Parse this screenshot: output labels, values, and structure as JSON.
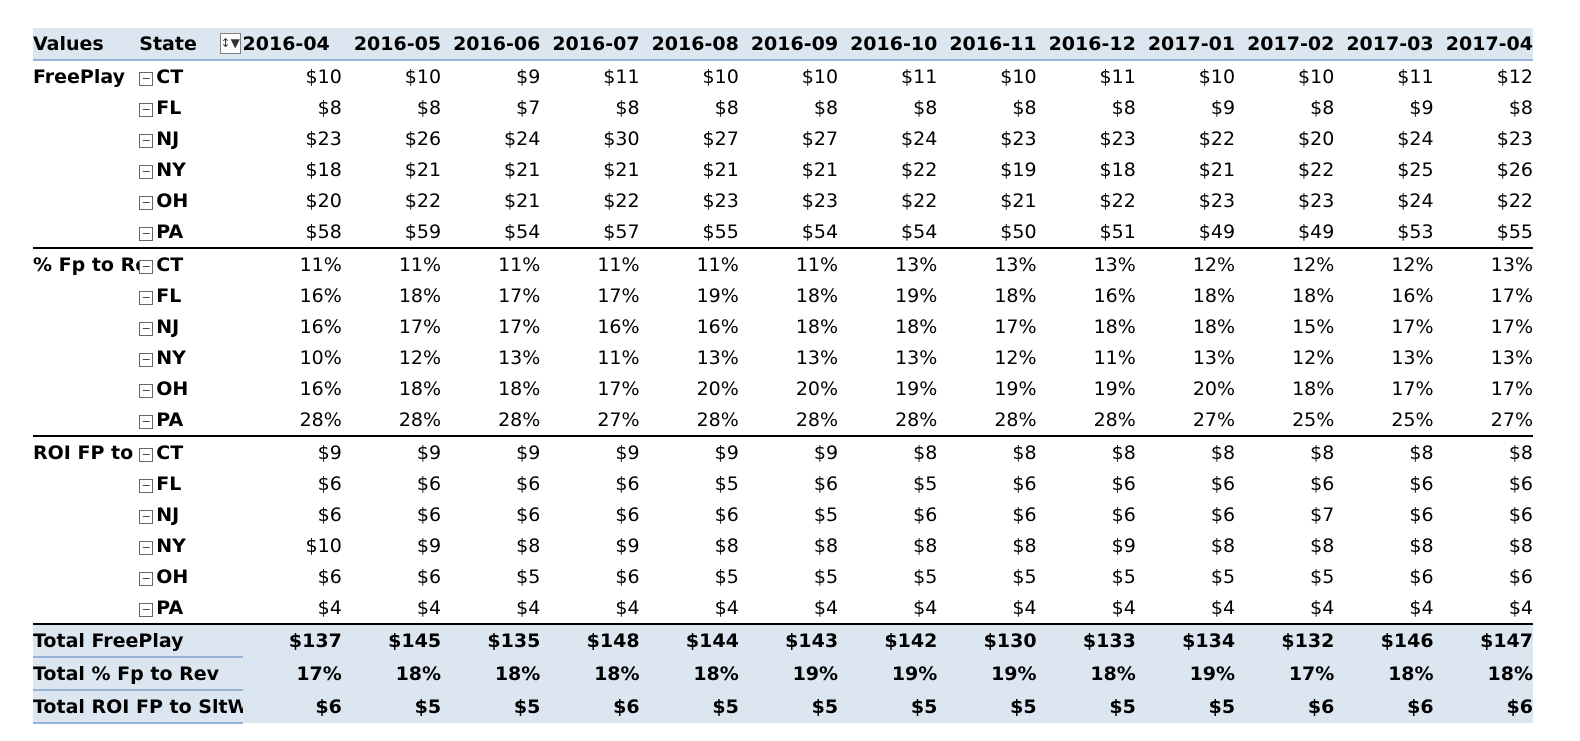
{
  "header": {
    "values_label": "Values",
    "state_label": "State",
    "filter_icon": "sort-filter-icon",
    "filter_glyph": "↕▼",
    "months": [
      "2016-04",
      "2016-05",
      "2016-06",
      "2016-07",
      "2016-08",
      "2016-09",
      "2016-10",
      "2016-11",
      "2016-12",
      "2017-01",
      "2017-02",
      "2017-03",
      "2017-04"
    ]
  },
  "collapse_glyph": "−",
  "groups": [
    {
      "label": "FreePlay",
      "rows": [
        {
          "state": "CT",
          "values": [
            "$10",
            "$10",
            "$9",
            "$11",
            "$10",
            "$10",
            "$11",
            "$10",
            "$11",
            "$10",
            "$10",
            "$11",
            "$12"
          ]
        },
        {
          "state": "FL",
          "values": [
            "$8",
            "$8",
            "$7",
            "$8",
            "$8",
            "$8",
            "$8",
            "$8",
            "$8",
            "$9",
            "$8",
            "$9",
            "$8"
          ]
        },
        {
          "state": "NJ",
          "values": [
            "$23",
            "$26",
            "$24",
            "$30",
            "$27",
            "$27",
            "$24",
            "$23",
            "$23",
            "$22",
            "$20",
            "$24",
            "$23"
          ]
        },
        {
          "state": "NY",
          "values": [
            "$18",
            "$21",
            "$21",
            "$21",
            "$21",
            "$21",
            "$22",
            "$19",
            "$18",
            "$21",
            "$22",
            "$25",
            "$26"
          ]
        },
        {
          "state": "OH",
          "values": [
            "$20",
            "$22",
            "$21",
            "$22",
            "$23",
            "$23",
            "$22",
            "$21",
            "$22",
            "$23",
            "$23",
            "$24",
            "$22"
          ]
        },
        {
          "state": "PA",
          "values": [
            "$58",
            "$59",
            "$54",
            "$57",
            "$55",
            "$54",
            "$54",
            "$50",
            "$51",
            "$49",
            "$49",
            "$53",
            "$55"
          ]
        }
      ]
    },
    {
      "label": "% Fp to Rev",
      "rows": [
        {
          "state": "CT",
          "values": [
            "11%",
            "11%",
            "11%",
            "11%",
            "11%",
            "11%",
            "13%",
            "13%",
            "13%",
            "12%",
            "12%",
            "12%",
            "13%"
          ]
        },
        {
          "state": "FL",
          "values": [
            "16%",
            "18%",
            "17%",
            "17%",
            "19%",
            "18%",
            "19%",
            "18%",
            "16%",
            "18%",
            "18%",
            "16%",
            "17%"
          ]
        },
        {
          "state": "NJ",
          "values": [
            "16%",
            "17%",
            "17%",
            "16%",
            "16%",
            "18%",
            "18%",
            "17%",
            "18%",
            "18%",
            "15%",
            "17%",
            "17%"
          ]
        },
        {
          "state": "NY",
          "values": [
            "10%",
            "12%",
            "13%",
            "11%",
            "13%",
            "13%",
            "13%",
            "12%",
            "11%",
            "13%",
            "12%",
            "13%",
            "13%"
          ]
        },
        {
          "state": "OH",
          "values": [
            "16%",
            "18%",
            "18%",
            "17%",
            "20%",
            "20%",
            "19%",
            "19%",
            "19%",
            "20%",
            "18%",
            "17%",
            "17%"
          ]
        },
        {
          "state": "PA",
          "values": [
            "28%",
            "28%",
            "28%",
            "27%",
            "28%",
            "28%",
            "28%",
            "28%",
            "28%",
            "27%",
            "25%",
            "25%",
            "27%"
          ]
        }
      ]
    },
    {
      "label": "ROI FP to S",
      "rows": [
        {
          "state": "CT",
          "values": [
            "$9",
            "$9",
            "$9",
            "$9",
            "$9",
            "$9",
            "$8",
            "$8",
            "$8",
            "$8",
            "$8",
            "$8",
            "$8"
          ]
        },
        {
          "state": "FL",
          "values": [
            "$6",
            "$6",
            "$6",
            "$6",
            "$5",
            "$6",
            "$5",
            "$6",
            "$6",
            "$6",
            "$6",
            "$6",
            "$6"
          ]
        },
        {
          "state": "NJ",
          "values": [
            "$6",
            "$6",
            "$6",
            "$6",
            "$6",
            "$5",
            "$6",
            "$6",
            "$6",
            "$6",
            "$7",
            "$6",
            "$6"
          ]
        },
        {
          "state": "NY",
          "values": [
            "$10",
            "$9",
            "$8",
            "$9",
            "$8",
            "$8",
            "$8",
            "$8",
            "$9",
            "$8",
            "$8",
            "$8",
            "$8"
          ]
        },
        {
          "state": "OH",
          "values": [
            "$6",
            "$6",
            "$5",
            "$6",
            "$5",
            "$5",
            "$5",
            "$5",
            "$5",
            "$5",
            "$5",
            "$6",
            "$6"
          ]
        },
        {
          "state": "PA",
          "values": [
            "$4",
            "$4",
            "$4",
            "$4",
            "$4",
            "$4",
            "$4",
            "$4",
            "$4",
            "$4",
            "$4",
            "$4",
            "$4"
          ]
        }
      ]
    }
  ],
  "totals": [
    {
      "label": "Total FreePlay",
      "values": [
        "$137",
        "$145",
        "$135",
        "$148",
        "$144",
        "$143",
        "$142",
        "$130",
        "$133",
        "$134",
        "$132",
        "$146",
        "$147"
      ]
    },
    {
      "label": "Total % Fp to Rev",
      "values": [
        "17%",
        "18%",
        "18%",
        "18%",
        "18%",
        "19%",
        "19%",
        "19%",
        "18%",
        "19%",
        "17%",
        "18%",
        "18%"
      ]
    },
    {
      "label": "Total ROI FP to SltWin",
      "values": [
        "$6",
        "$5",
        "$5",
        "$6",
        "$5",
        "$5",
        "$5",
        "$5",
        "$5",
        "$5",
        "$6",
        "$6",
        "$6"
      ]
    }
  ],
  "colors": {
    "header_fill": "#dce6f1",
    "header_border": "#95b3d7"
  }
}
